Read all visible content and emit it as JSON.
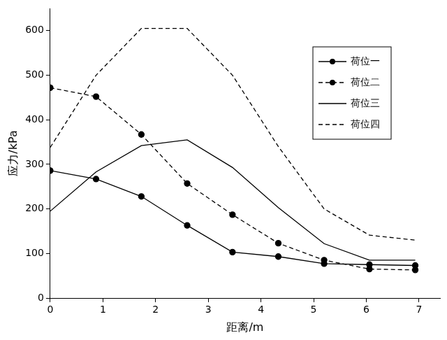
{
  "chart_data": {
    "type": "line",
    "x_label": "距离/m",
    "y_label": "应力/kPa",
    "x": [
      0,
      0.87,
      1.73,
      2.6,
      3.46,
      4.33,
      5.2,
      6.06,
      6.93
    ],
    "series": [
      {
        "name": "荷位一",
        "color": "#000000",
        "marker": "circle",
        "line_style": "solid",
        "values": [
          286,
          267,
          228,
          163,
          103,
          93,
          77,
          75,
          73
        ]
      },
      {
        "name": "荷位二",
        "color": "#000000",
        "marker": "circle",
        "line_style": "dashed",
        "values": [
          472,
          452,
          367,
          257,
          187,
          123,
          85,
          65,
          63
        ]
      },
      {
        "name": "荷位三",
        "color": "#000000",
        "marker": "none",
        "line_style": "solid",
        "values": [
          195,
          283,
          342,
          355,
          293,
          203,
          122,
          85,
          85
        ]
      },
      {
        "name": "荷位四",
        "color": "#000000",
        "marker": "none",
        "line_style": "dashed",
        "values": [
          338,
          500,
          605,
          605,
          500,
          340,
          200,
          141,
          130
        ]
      }
    ],
    "xlim": [
      0,
      7.4
    ],
    "xticks": [
      0,
      1,
      2,
      3,
      4,
      5,
      6,
      7
    ],
    "ylim": [
      0,
      650
    ],
    "yticks": [
      0,
      100,
      200,
      300,
      400,
      500,
      600
    ],
    "grid": false,
    "legend": "top-right"
  }
}
